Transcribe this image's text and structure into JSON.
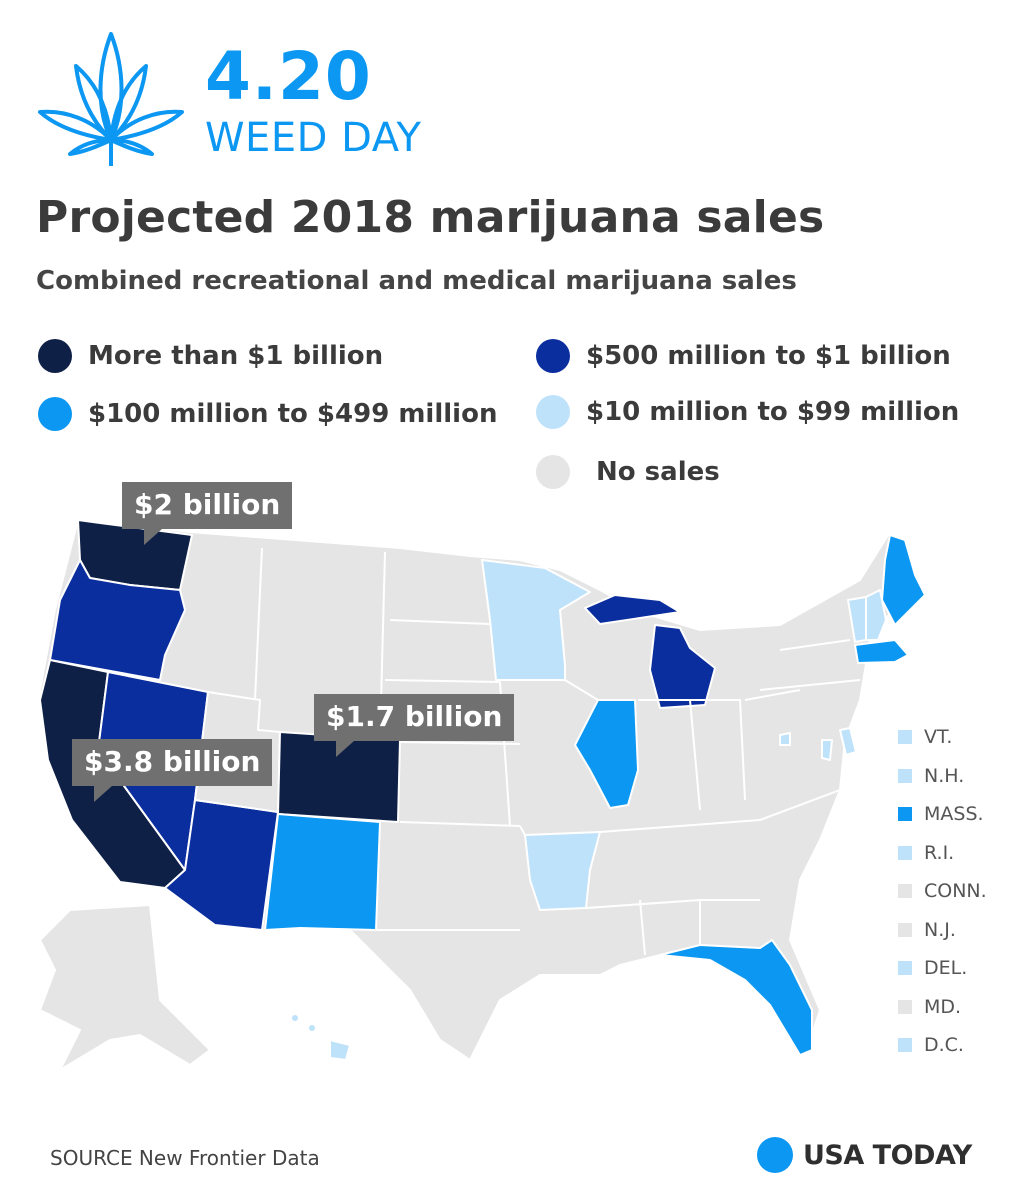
{
  "header": {
    "number": "4.20",
    "subtitle": "WEED DAY",
    "logo_icon": "cannabis-leaf-icon"
  },
  "title": "Projected 2018 marijuana sales",
  "subtitle": "Combined recreational and medical marijuana sales",
  "colors": {
    "over_1b": "#0f2047",
    "b500m_1b": "#0b2e9e",
    "b100m_499m": "#0b97f2",
    "b10m_99m": "#bfe2fb",
    "no_sales": "#e5e5e5",
    "accent": "#0b97f2",
    "callout": "#707070"
  },
  "legend": [
    {
      "label": "More than $1 billion",
      "color": "#0f2047"
    },
    {
      "label": "$500 million to $1 billion",
      "color": "#0b2e9e"
    },
    {
      "label": "$100 million to $499 million",
      "color": "#0b97f2"
    },
    {
      "label": "$10 million to $99 million",
      "color": "#bfe2fb"
    },
    {
      "label": "No sales",
      "color": "#e5e5e5"
    }
  ],
  "callouts": {
    "washington": "$2 billion",
    "colorado": "$1.7 billion",
    "california": "$3.8 billion"
  },
  "small_states": [
    {
      "label": "VT.",
      "color": "#bfe2fb"
    },
    {
      "label": "N.H.",
      "color": "#bfe2fb"
    },
    {
      "label": "MASS.",
      "color": "#0b97f2"
    },
    {
      "label": "R.I.",
      "color": "#bfe2fb"
    },
    {
      "label": "CONN.",
      "color": "#e5e5e5"
    },
    {
      "label": "N.J.",
      "color": "#e5e5e5"
    },
    {
      "label": "DEL.",
      "color": "#bfe2fb"
    },
    {
      "label": "MD.",
      "color": "#e5e5e5"
    },
    {
      "label": "D.C.",
      "color": "#bfe2fb"
    }
  ],
  "source": "SOURCE New Frontier Data",
  "brand": "USA TODAY"
}
